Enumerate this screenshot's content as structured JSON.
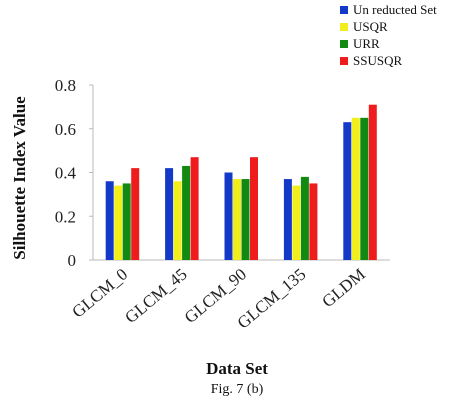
{
  "chart_data": {
    "type": "bar",
    "categories": [
      "GLCM_0",
      "GLCM_45",
      "GLCM_90",
      "GLCM_135",
      "GLDM"
    ],
    "series": [
      {
        "name": "Un reducted Set",
        "values": [
          0.36,
          0.42,
          0.4,
          0.37,
          0.63
        ]
      },
      {
        "name": "USQR",
        "values": [
          0.34,
          0.36,
          0.37,
          0.34,
          0.65
        ]
      },
      {
        "name": "URR",
        "values": [
          0.35,
          0.43,
          0.37,
          0.38,
          0.65
        ]
      },
      {
        "name": "SSUSQR",
        "values": [
          0.42,
          0.47,
          0.47,
          0.35,
          0.71
        ]
      }
    ],
    "colors": [
      "#1438c8",
      "#f2ee1c",
      "#128a12",
      "#ee1c1c"
    ],
    "xlabel": "Data Set",
    "ylabel": "Silhouette Index Value",
    "ylim": [
      0,
      0.8
    ],
    "yticks": [
      "0",
      "0.2",
      "0.4",
      "0.6",
      "0.8"
    ],
    "legend_position": "top-right",
    "grid": false
  },
  "caption": "Fig. 7 (b)"
}
